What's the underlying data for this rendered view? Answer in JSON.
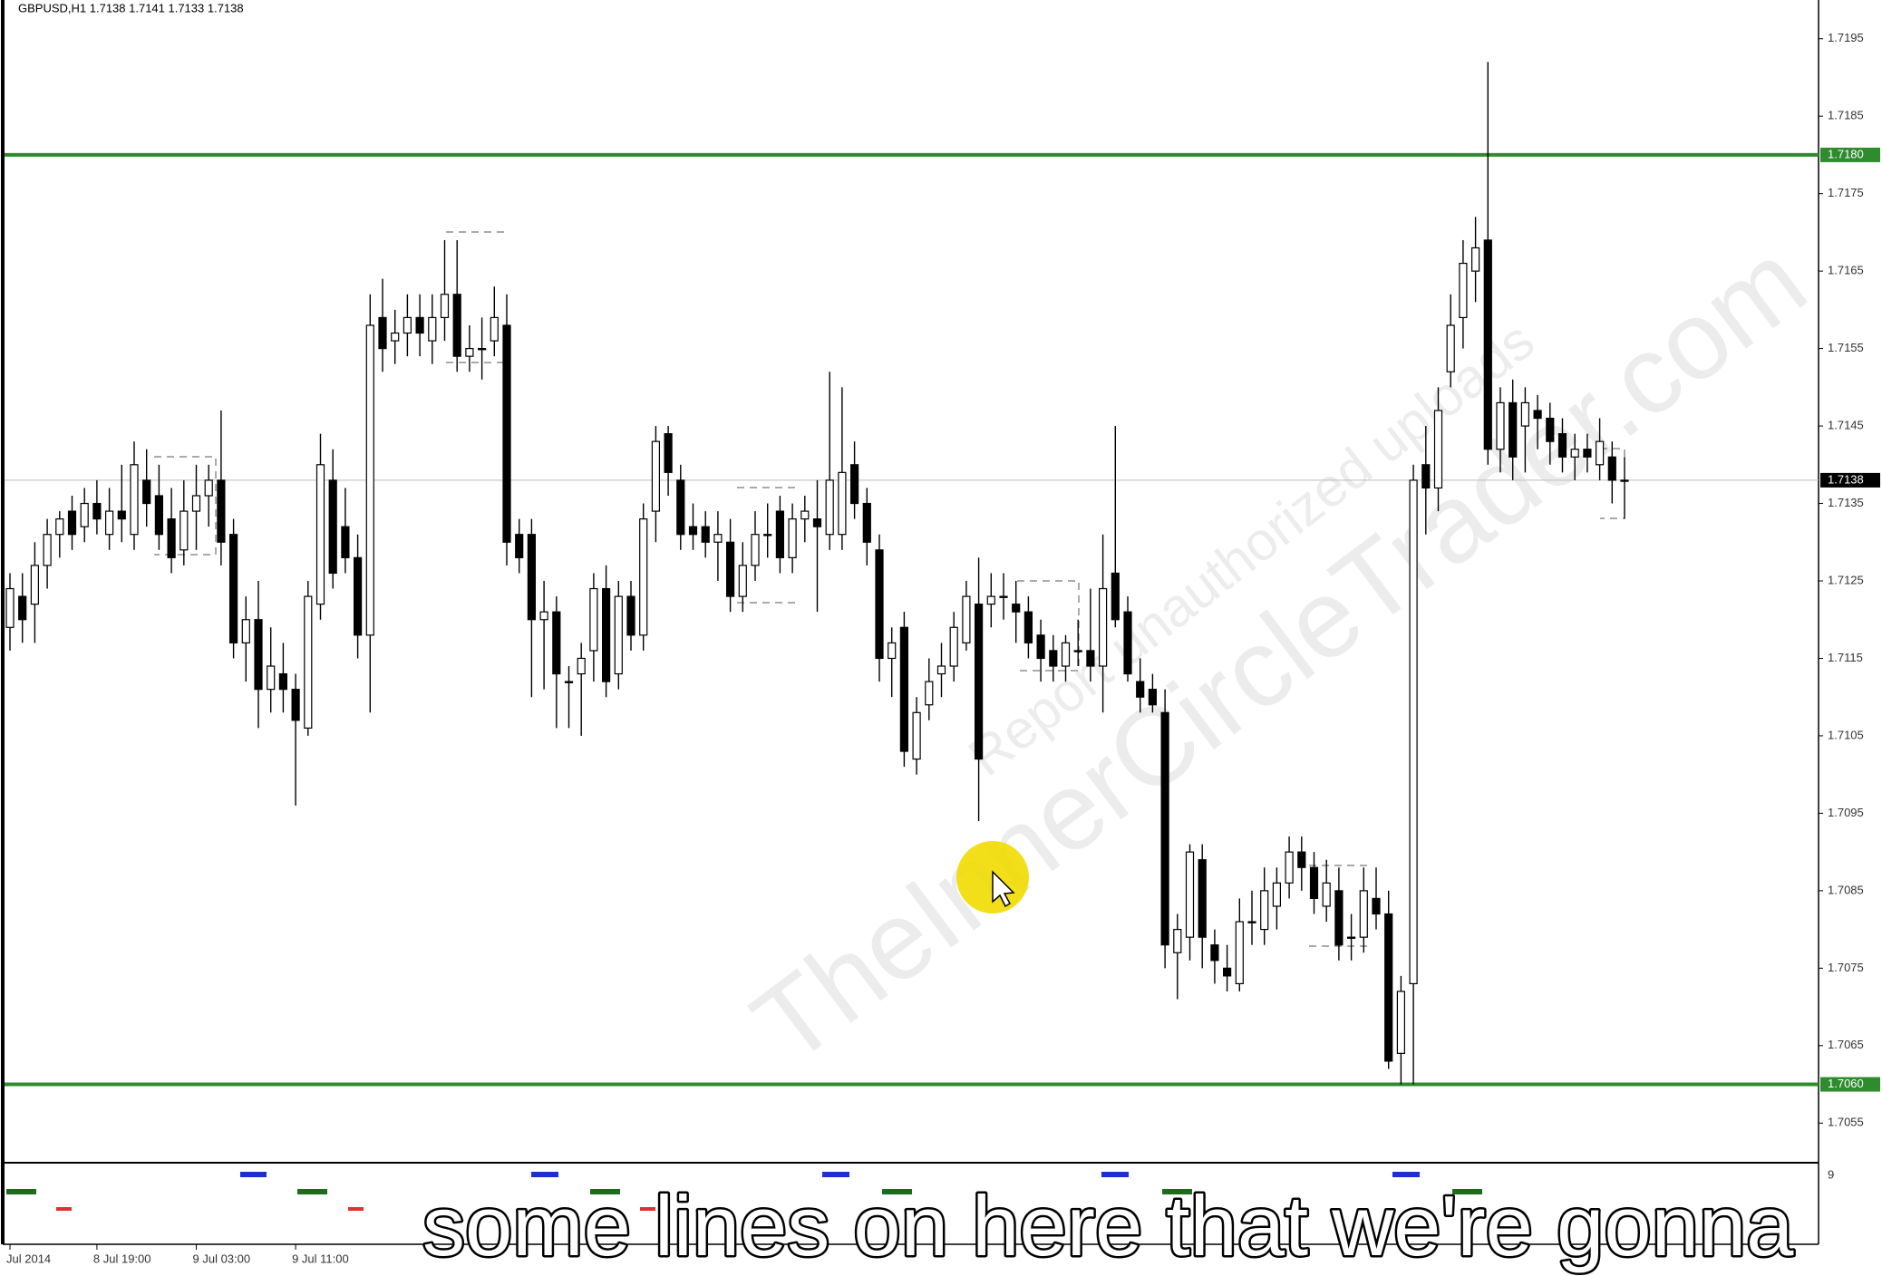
{
  "chart_data": {
    "type": "candlestick",
    "title": "GBPUSD,H1  1.7138 1.7141 1.7133 1.7138",
    "categories": [
      "Jul 2014",
      null,
      null,
      null,
      null,
      null,
      null,
      "8 Jul 19:00",
      null,
      null,
      null,
      null,
      null,
      null,
      null,
      "9 Jul 03:00",
      null,
      null,
      null,
      null,
      null,
      null,
      null,
      "9 Jul 11:00",
      null,
      null,
      null,
      null,
      null,
      null,
      null,
      null,
      null,
      null,
      null,
      null,
      null,
      null,
      null,
      null,
      null,
      null,
      null,
      null,
      null,
      null,
      null,
      null,
      null,
      null,
      null,
      null,
      null,
      null,
      null,
      null,
      null,
      null,
      null,
      null,
      null,
      null,
      null,
      null,
      null,
      null,
      null,
      null,
      null,
      null,
      null,
      null,
      null,
      null,
      null,
      null,
      null,
      null,
      null,
      null,
      null,
      null,
      null,
      null,
      null,
      null,
      null,
      null,
      null,
      null,
      null,
      null,
      null,
      null,
      null,
      null,
      null,
      null,
      null,
      null,
      null,
      null,
      null,
      null,
      null,
      null,
      null,
      null,
      null,
      null,
      null,
      null,
      null,
      null,
      null,
      null,
      null,
      null,
      null,
      null,
      null,
      null,
      null,
      null,
      null,
      null,
      null,
      null,
      null,
      null,
      null
    ],
    "ohlc": [
      [
        1.7119,
        1.7126,
        1.7116,
        1.7124
      ],
      [
        1.7123,
        1.7126,
        1.7117,
        1.712
      ],
      [
        1.7122,
        1.713,
        1.7117,
        1.7127
      ],
      [
        1.7127,
        1.7133,
        1.7124,
        1.7131
      ],
      [
        1.7131,
        1.7134,
        1.7128,
        1.7133
      ],
      [
        1.7134,
        1.7136,
        1.7129,
        1.7131
      ],
      [
        1.7132,
        1.7137,
        1.713,
        1.7135
      ],
      [
        1.7135,
        1.7138,
        1.7131,
        1.7133
      ],
      [
        1.7131,
        1.7137,
        1.7129,
        1.7134
      ],
      [
        1.7134,
        1.714,
        1.713,
        1.7133
      ],
      [
        1.7131,
        1.7143,
        1.7129,
        1.714
      ],
      [
        1.7138,
        1.7142,
        1.7132,
        1.7135
      ],
      [
        1.7136,
        1.714,
        1.7129,
        1.7131
      ],
      [
        1.7133,
        1.7137,
        1.7126,
        1.7128
      ],
      [
        1.7129,
        1.7138,
        1.7127,
        1.7134
      ],
      [
        1.7134,
        1.714,
        1.7129,
        1.7136
      ],
      [
        1.7136,
        1.714,
        1.7132,
        1.7138
      ],
      [
        1.7138,
        1.7147,
        1.7127,
        1.713
      ],
      [
        1.7131,
        1.7133,
        1.7115,
        1.7117
      ],
      [
        1.7117,
        1.7123,
        1.7112,
        1.712
      ],
      [
        1.712,
        1.7125,
        1.7106,
        1.7111
      ],
      [
        1.7111,
        1.7119,
        1.7108,
        1.7114
      ],
      [
        1.7113,
        1.7117,
        1.7108,
        1.7111
      ],
      [
        1.7111,
        1.7113,
        1.7096,
        1.7107
      ],
      [
        1.7106,
        1.7125,
        1.7105,
        1.7123
      ],
      [
        1.7122,
        1.7144,
        1.712,
        1.714
      ],
      [
        1.7138,
        1.7142,
        1.7124,
        1.7126
      ],
      [
        1.7132,
        1.7137,
        1.7126,
        1.7128
      ],
      [
        1.7128,
        1.7131,
        1.7115,
        1.7118
      ],
      [
        1.7118,
        1.7162,
        1.7108,
        1.7158
      ],
      [
        1.7159,
        1.7164,
        1.7152,
        1.7155
      ],
      [
        1.7156,
        1.716,
        1.7153,
        1.7157
      ],
      [
        1.7157,
        1.7162,
        1.7154,
        1.7159
      ],
      [
        1.7159,
        1.7162,
        1.7154,
        1.7157
      ],
      [
        1.7156,
        1.7162,
        1.7153,
        1.7159
      ],
      [
        1.7159,
        1.7169,
        1.7156,
        1.7162
      ],
      [
        1.7162,
        1.7169,
        1.7152,
        1.7154
      ],
      [
        1.7154,
        1.7158,
        1.7152,
        1.7155
      ],
      [
        1.7155,
        1.7159,
        1.7151,
        1.7155
      ],
      [
        1.7156,
        1.7163,
        1.7154,
        1.7159
      ],
      [
        1.7158,
        1.7162,
        1.7127,
        1.713
      ],
      [
        1.7131,
        1.7133,
        1.7126,
        1.7128
      ],
      [
        1.7131,
        1.7133,
        1.711,
        1.712
      ],
      [
        1.712,
        1.7125,
        1.7111,
        1.7121
      ],
      [
        1.7121,
        1.7123,
        1.7106,
        1.7113
      ],
      [
        1.7112,
        1.7114,
        1.7106,
        1.7112
      ],
      [
        1.7113,
        1.7117,
        1.7105,
        1.7115
      ],
      [
        1.7116,
        1.7126,
        1.7112,
        1.7124
      ],
      [
        1.7124,
        1.7127,
        1.711,
        1.7112
      ],
      [
        1.7113,
        1.7125,
        1.7111,
        1.7123
      ],
      [
        1.7123,
        1.7125,
        1.7116,
        1.7118
      ],
      [
        1.7118,
        1.7135,
        1.7116,
        1.7133
      ],
      [
        1.7134,
        1.7145,
        1.713,
        1.7143
      ],
      [
        1.7144,
        1.7145,
        1.7136,
        1.7139
      ],
      [
        1.7138,
        1.714,
        1.7129,
        1.7131
      ],
      [
        1.7132,
        1.7135,
        1.7129,
        1.7131
      ],
      [
        1.7132,
        1.7134,
        1.7128,
        1.713
      ],
      [
        1.713,
        1.7134,
        1.7125,
        1.7131
      ],
      [
        1.713,
        1.7133,
        1.7121,
        1.7123
      ],
      [
        1.7123,
        1.713,
        1.7121,
        1.7127
      ],
      [
        1.7127,
        1.7134,
        1.7125,
        1.7131
      ],
      [
        1.7131,
        1.7135,
        1.7128,
        1.7131
      ],
      [
        1.7134,
        1.7136,
        1.7126,
        1.7128
      ],
      [
        1.7128,
        1.7135,
        1.7126,
        1.7133
      ],
      [
        1.7133,
        1.7136,
        1.713,
        1.7134
      ],
      [
        1.7133,
        1.7138,
        1.7121,
        1.7132
      ],
      [
        1.7131,
        1.7152,
        1.7129,
        1.7138
      ],
      [
        1.7131,
        1.715,
        1.7129,
        1.7139
      ],
      [
        1.714,
        1.7143,
        1.7133,
        1.7135
      ],
      [
        1.7135,
        1.7137,
        1.7127,
        1.713
      ],
      [
        1.7129,
        1.7131,
        1.7112,
        1.7115
      ],
      [
        1.7115,
        1.7119,
        1.711,
        1.7117
      ],
      [
        1.7119,
        1.7121,
        1.7101,
        1.7103
      ],
      [
        1.7102,
        1.711,
        1.71,
        1.7108
      ],
      [
        1.7109,
        1.7115,
        1.7107,
        1.7112
      ],
      [
        1.7113,
        1.7117,
        1.711,
        1.7114
      ],
      [
        1.7114,
        1.7121,
        1.7112,
        1.7119
      ],
      [
        1.7117,
        1.7125,
        1.7116,
        1.7123
      ],
      [
        1.7122,
        1.7128,
        1.7094,
        1.7102
      ],
      [
        1.7122,
        1.7126,
        1.7119,
        1.7123
      ],
      [
        1.7123,
        1.7126,
        1.712,
        1.7123
      ],
      [
        1.7122,
        1.7125,
        1.7117,
        1.7121
      ],
      [
        1.7121,
        1.7123,
        1.7115,
        1.7117
      ],
      [
        1.7118,
        1.712,
        1.7112,
        1.7115
      ],
      [
        1.7116,
        1.7118,
        1.7112,
        1.7114
      ],
      [
        1.7114,
        1.7118,
        1.7112,
        1.7117
      ],
      [
        1.7116,
        1.712,
        1.7114,
        1.7116
      ],
      [
        1.7116,
        1.7124,
        1.7112,
        1.7114
      ],
      [
        1.7114,
        1.7131,
        1.7108,
        1.7124
      ],
      [
        1.7126,
        1.7145,
        1.7119,
        1.712
      ],
      [
        1.7121,
        1.7123,
        1.7112,
        1.7113
      ],
      [
        1.7112,
        1.7115,
        1.7108,
        1.711
      ],
      [
        1.7111,
        1.7113,
        1.7108,
        1.7109
      ],
      [
        1.7108,
        1.7111,
        1.7075,
        1.7078
      ],
      [
        1.7077,
        1.7082,
        1.7071,
        1.708
      ],
      [
        1.7079,
        1.7091,
        1.7076,
        1.709
      ],
      [
        1.7089,
        1.7091,
        1.7075,
        1.7079
      ],
      [
        1.7078,
        1.708,
        1.7073,
        1.7076
      ],
      [
        1.7075,
        1.7078,
        1.7072,
        1.7074
      ],
      [
        1.7073,
        1.7084,
        1.7072,
        1.7081
      ],
      [
        1.7081,
        1.7085,
        1.7078,
        1.7081
      ],
      [
        1.708,
        1.7088,
        1.7078,
        1.7085
      ],
      [
        1.7083,
        1.7088,
        1.708,
        1.7086
      ],
      [
        1.7086,
        1.7092,
        1.7084,
        1.709
      ],
      [
        1.709,
        1.7092,
        1.7085,
        1.7088
      ],
      [
        1.7088,
        1.709,
        1.7082,
        1.7084
      ],
      [
        1.7083,
        1.7089,
        1.7081,
        1.7086
      ],
      [
        1.7085,
        1.7088,
        1.7076,
        1.7078
      ],
      [
        1.7079,
        1.7082,
        1.7076,
        1.7079
      ],
      [
        1.7079,
        1.7088,
        1.7077,
        1.7085
      ],
      [
        1.7084,
        1.7088,
        1.708,
        1.7082
      ],
      [
        1.7082,
        1.7085,
        1.7062,
        1.7063
      ],
      [
        1.7064,
        1.7074,
        1.706,
        1.7072
      ],
      [
        1.7073,
        1.714,
        1.706,
        1.7138
      ],
      [
        1.714,
        1.7145,
        1.7131,
        1.7137
      ],
      [
        1.7137,
        1.715,
        1.7134,
        1.7147
      ],
      [
        1.7152,
        1.7162,
        1.715,
        1.7158
      ],
      [
        1.7159,
        1.7169,
        1.7155,
        1.7166
      ],
      [
        1.7165,
        1.7172,
        1.7161,
        1.7168
      ],
      [
        1.7169,
        1.7192,
        1.714,
        1.7142
      ],
      [
        1.7142,
        1.715,
        1.7139,
        1.7148
      ],
      [
        1.7148,
        1.7151,
        1.7138,
        1.7141
      ],
      [
        1.7145,
        1.715,
        1.7139,
        1.7148
      ],
      [
        1.7147,
        1.7149,
        1.7142,
        1.7146
      ],
      [
        1.7146,
        1.7148,
        1.714,
        1.7143
      ],
      [
        1.7144,
        1.7146,
        1.7139,
        1.7141
      ],
      [
        1.7141,
        1.7144,
        1.7138,
        1.7142
      ],
      [
        1.7142,
        1.7144,
        1.7139,
        1.7141
      ],
      [
        1.714,
        1.7146,
        1.7138,
        1.7143
      ],
      [
        1.7141,
        1.7143,
        1.7135,
        1.7138
      ],
      [
        1.7138,
        1.7141,
        1.7133,
        1.7138
      ]
    ],
    "up_color": "#ffffff",
    "down_color": "#000000",
    "line_color": "#000000",
    "ylim": [
      1.705,
      1.72
    ],
    "yticks": [
      1.7055,
      1.7065,
      1.7075,
      1.7085,
      1.7095,
      1.7105,
      1.7115,
      1.7125,
      1.7135,
      1.7145,
      1.7155,
      1.7165,
      1.7175,
      1.7185,
      1.7195
    ],
    "levels": [
      {
        "value": 1.718,
        "label": "1.7180",
        "color": "#2e8b2e",
        "label_bg": "#2e8b2e",
        "width": 4
      },
      {
        "value": 1.706,
        "label": "1.7060",
        "color": "#2e8b2e",
        "label_bg": "#2e8b2e",
        "width": 4
      },
      {
        "value": 1.7138,
        "label": "1.7138",
        "color": "#bdbdbd",
        "label_bg": "#000000",
        "width": 1
      }
    ],
    "indicator_label": "9"
  },
  "caption": "some lines on here that we're gonna",
  "watermark": [
    "TheInnerCircleTrader.com",
    "Report unauthorized uploads"
  ]
}
